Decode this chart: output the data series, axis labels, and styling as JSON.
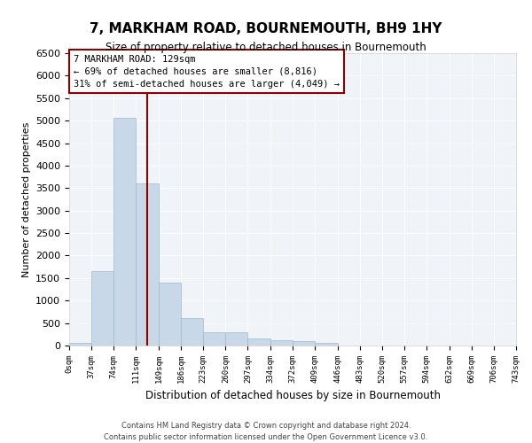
{
  "title": "7, MARKHAM ROAD, BOURNEMOUTH, BH9 1HY",
  "subtitle": "Size of property relative to detached houses in Bournemouth",
  "xlabel": "Distribution of detached houses by size in Bournemouth",
  "ylabel": "Number of detached properties",
  "bar_color": "#c8d8e8",
  "bar_edge_color": "#a0b8cc",
  "background_color": "#f0f4f8",
  "grid_color": "#ffffff",
  "annotation_line_color": "#8b0000",
  "annotation_box_color": "#8b0000",
  "annotation_text": "7 MARKHAM ROAD: 129sqm\n← 69% of detached houses are smaller (8,816)\n31% of semi-detached houses are larger (4,049) →",
  "property_size": 129,
  "bin_edges": [
    0,
    37,
    74,
    111,
    149,
    186,
    223,
    260,
    297,
    334,
    372,
    409,
    446,
    483,
    520,
    557,
    594,
    632,
    669,
    706,
    743
  ],
  "bar_heights": [
    60,
    1650,
    5070,
    3600,
    1400,
    610,
    300,
    300,
    155,
    115,
    90,
    50,
    0,
    0,
    0,
    0,
    0,
    0,
    0,
    0
  ],
  "tick_labels": [
    "0sqm",
    "37sqm",
    "74sqm",
    "111sqm",
    "149sqm",
    "186sqm",
    "223sqm",
    "260sqm",
    "297sqm",
    "334sqm",
    "372sqm",
    "409sqm",
    "446sqm",
    "483sqm",
    "520sqm",
    "557sqm",
    "594sqm",
    "632sqm",
    "669sqm",
    "706sqm",
    "743sqm"
  ],
  "ylim": [
    0,
    6500
  ],
  "yticks": [
    0,
    500,
    1000,
    1500,
    2000,
    2500,
    3000,
    3500,
    4000,
    4500,
    5000,
    5500,
    6000,
    6500
  ],
  "footer_line1": "Contains HM Land Registry data © Crown copyright and database right 2024.",
  "footer_line2": "Contains public sector information licensed under the Open Government Licence v3.0."
}
